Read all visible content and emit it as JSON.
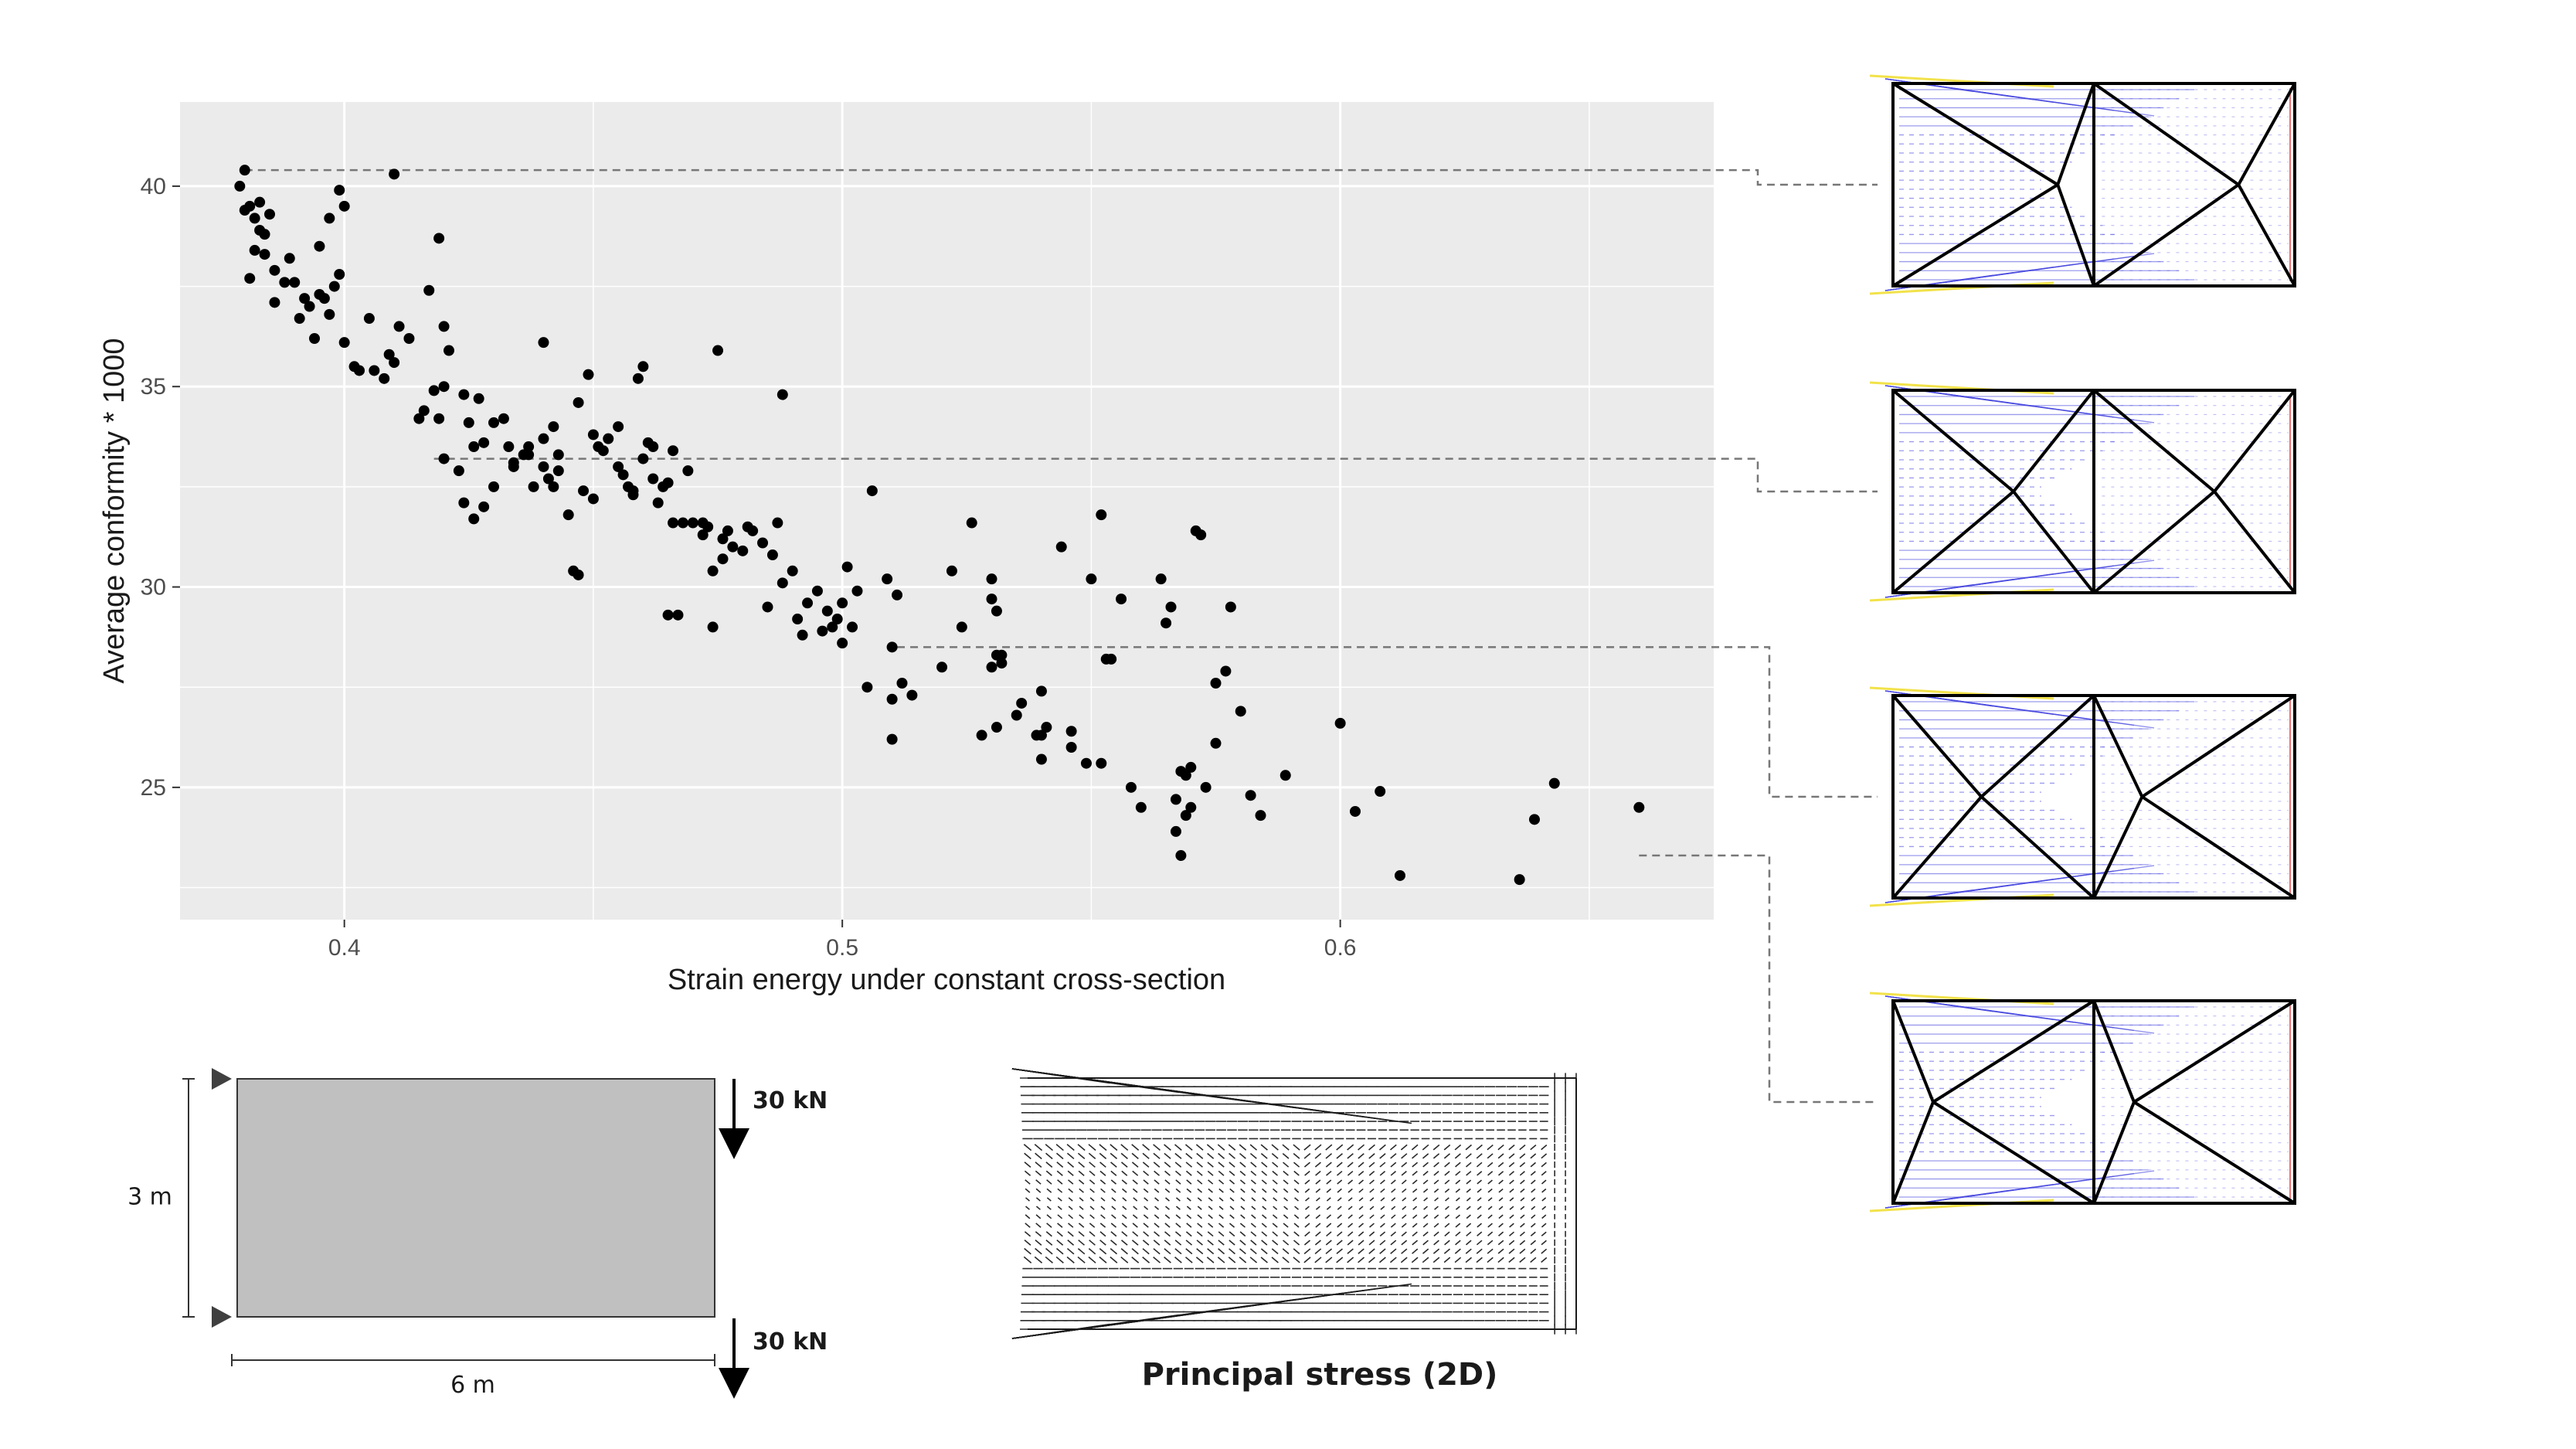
{
  "chart_data": {
    "type": "scatter",
    "xlabel": "Strain energy under constant cross-section",
    "ylabel": "Average conformity * 1000",
    "xlim": [
      0.367,
      0.675
    ],
    "ylim": [
      21.7,
      42.1
    ],
    "x_ticks": [
      0.4,
      0.5,
      0.6
    ],
    "y_ticks": [
      25,
      30,
      35,
      40
    ],
    "x_tick_labels": [
      "0.4",
      "0.5",
      "0.6"
    ],
    "y_tick_labels": [
      "25",
      "30",
      "35",
      "40"
    ],
    "grid": true,
    "point_color": "#000000",
    "panel_color": "#ebebeb",
    "x": [
      0.38,
      0.379,
      0.381,
      0.383,
      0.38,
      0.385,
      0.382,
      0.383,
      0.384,
      0.381,
      0.382,
      0.386,
      0.388,
      0.39,
      0.392,
      0.389,
      0.386,
      0.384,
      0.393,
      0.395,
      0.397,
      0.394,
      0.398,
      0.399,
      0.4,
      0.397,
      0.41,
      0.391,
      0.395,
      0.4,
      0.405,
      0.408,
      0.411,
      0.41,
      0.413,
      0.409,
      0.406,
      0.403,
      0.402,
      0.399,
      0.396,
      0.419,
      0.42,
      0.421,
      0.42,
      0.418,
      0.417,
      0.416,
      0.415,
      0.419,
      0.424,
      0.425,
      0.427,
      0.428,
      0.43,
      0.432,
      0.433,
      0.434,
      0.436,
      0.437,
      0.438,
      0.44,
      0.441,
      0.442,
      0.443,
      0.443,
      0.442,
      0.44,
      0.437,
      0.434,
      0.43,
      0.428,
      0.426,
      0.424,
      0.423,
      0.42,
      0.426,
      0.44,
      0.445,
      0.447,
      0.449,
      0.45,
      0.451,
      0.452,
      0.455,
      0.456,
      0.457,
      0.458,
      0.459,
      0.46,
      0.461,
      0.462,
      0.463,
      0.464,
      0.465,
      0.466,
      0.455,
      0.453,
      0.45,
      0.447,
      0.446,
      0.448,
      0.458,
      0.46,
      0.462,
      0.466,
      0.468,
      0.47,
      0.472,
      0.473,
      0.474,
      0.476,
      0.477,
      0.478,
      0.48,
      0.482,
      0.484,
      0.486,
      0.487,
      0.488,
      0.475,
      0.472,
      0.469,
      0.465,
      0.467,
      0.474,
      0.476,
      0.481,
      0.485,
      0.488,
      0.49,
      0.491,
      0.492,
      0.493,
      0.495,
      0.497,
      0.498,
      0.499,
      0.5,
      0.501,
      0.502,
      0.503,
      0.505,
      0.506,
      0.509,
      0.511,
      0.51,
      0.512,
      0.514,
      0.52,
      0.522,
      0.524,
      0.526,
      0.528,
      0.53,
      0.531,
      0.531,
      0.532,
      0.535,
      0.536,
      0.539,
      0.54,
      0.541,
      0.544,
      0.546,
      0.549,
      0.55,
      0.552,
      0.553,
      0.556,
      0.558,
      0.56,
      0.564,
      0.566,
      0.567,
      0.568,
      0.569,
      0.57,
      0.571,
      0.572,
      0.573,
      0.575,
      0.577,
      0.578,
      0.58,
      0.582,
      0.584,
      0.589,
      0.6,
      0.603,
      0.608,
      0.612,
      0.636,
      0.639,
      0.643,
      0.66,
      0.568,
      0.57,
      0.567,
      0.569,
      0.565,
      0.575,
      0.53,
      0.53,
      0.532,
      0.531,
      0.54,
      0.546,
      0.552,
      0.554,
      0.54,
      0.51,
      0.5,
      0.496,
      0.51
    ],
    "y": [
      40.4,
      40.0,
      39.5,
      39.6,
      39.4,
      39.3,
      39.2,
      38.9,
      38.8,
      37.7,
      38.4,
      37.1,
      37.6,
      37.6,
      37.2,
      38.2,
      37.9,
      38.3,
      37.0,
      37.3,
      36.8,
      36.2,
      37.5,
      39.9,
      39.5,
      39.2,
      40.3,
      36.7,
      38.5,
      36.1,
      36.7,
      35.2,
      36.5,
      35.6,
      36.2,
      35.8,
      35.4,
      35.4,
      35.5,
      37.8,
      37.2,
      38.7,
      36.5,
      35.9,
      35.0,
      34.9,
      37.4,
      34.4,
      34.2,
      34.2,
      34.8,
      34.1,
      34.7,
      33.6,
      34.1,
      34.2,
      33.5,
      33.1,
      33.3,
      33.5,
      32.5,
      33.0,
      32.7,
      32.5,
      32.9,
      33.3,
      34.0,
      33.7,
      33.3,
      33.0,
      32.5,
      32.0,
      31.7,
      32.1,
      32.9,
      33.2,
      33.5,
      36.1,
      31.8,
      34.6,
      35.3,
      33.8,
      33.5,
      33.4,
      33.0,
      32.8,
      32.5,
      32.4,
      35.2,
      35.5,
      33.6,
      33.5,
      32.1,
      32.5,
      32.6,
      33.4,
      34.0,
      33.7,
      32.2,
      30.3,
      30.4,
      32.4,
      32.3,
      33.2,
      32.7,
      31.6,
      31.6,
      31.6,
      31.3,
      31.5,
      30.4,
      31.2,
      31.4,
      31.0,
      30.9,
      31.4,
      31.1,
      30.8,
      31.6,
      34.8,
      35.9,
      31.6,
      32.9,
      29.3,
      29.3,
      29.0,
      30.7,
      31.5,
      29.5,
      30.1,
      30.4,
      29.2,
      28.8,
      29.6,
      29.9,
      29.4,
      29.0,
      29.2,
      29.6,
      30.5,
      29.0,
      29.9,
      27.5,
      32.4,
      30.2,
      29.8,
      28.5,
      27.6,
      27.3,
      28.0,
      30.4,
      29.0,
      31.6,
      26.3,
      29.7,
      29.4,
      28.3,
      28.1,
      26.8,
      27.1,
      26.3,
      26.3,
      26.5,
      31.0,
      26.0,
      25.6,
      30.2,
      31.8,
      28.2,
      29.7,
      25.0,
      24.5,
      30.2,
      29.5,
      23.9,
      25.4,
      25.3,
      25.5,
      31.4,
      31.3,
      25.0,
      26.1,
      27.9,
      29.5,
      26.9,
      24.8,
      24.3,
      25.3,
      26.6,
      24.4,
      24.9,
      22.8,
      22.7,
      24.2,
      25.1,
      24.5,
      23.3,
      24.5,
      24.7,
      24.3,
      29.1,
      27.6,
      30.2,
      28.0,
      28.3,
      26.5,
      27.4,
      26.4,
      25.6,
      28.2,
      25.7,
      26.2,
      28.6,
      28.9,
      27.2
    ],
    "highlighted": [
      {
        "x": 0.38,
        "y": 40.4,
        "leader_y": 40.4
      },
      {
        "x": 0.418,
        "y": 33.2,
        "leader_y": 33.2
      },
      {
        "x": 0.511,
        "y": 28.5,
        "leader_y": 28.5
      },
      {
        "x": 0.66,
        "y": 23.3,
        "leader_y": 23.3
      }
    ]
  },
  "load_diagram": {
    "height_label": "3 m",
    "width_label": "6 m",
    "top_load_label": "30 kN",
    "bottom_load_label": "30 kN",
    "fill_color": "#c0c0c0"
  },
  "stress_panel": {
    "caption": "Principal stress (2D)"
  },
  "trusses": {
    "count": 4,
    "member_color": "#000000",
    "stress_color": "#4a4ae0",
    "tension_color": "#e03a3a",
    "edge_highlight_color": "#f2e24a"
  }
}
